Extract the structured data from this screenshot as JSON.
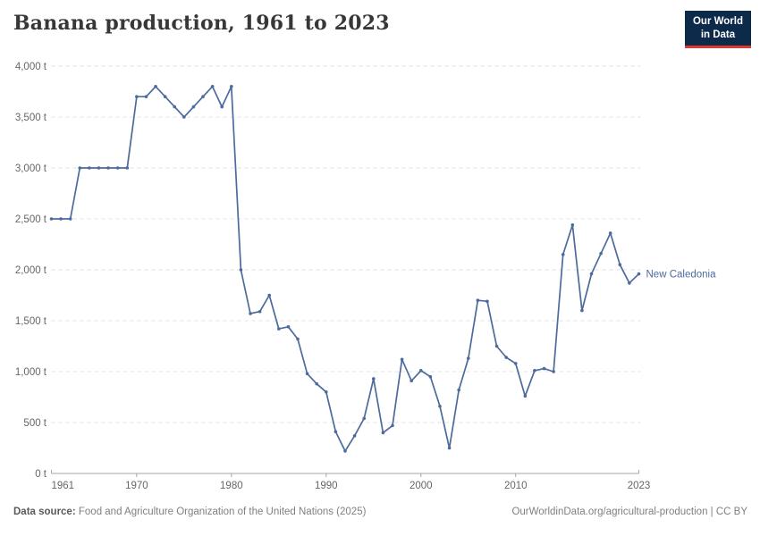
{
  "header": {
    "title": "Banana production, 1961 to 2023",
    "logo": {
      "line1": "Our World",
      "line2": "in Data"
    }
  },
  "chart_data": {
    "type": "line",
    "title": "Banana production, 1961 to 2023",
    "xlabel": "",
    "ylabel": "",
    "xlim": [
      1961,
      2023
    ],
    "ylim": [
      0,
      4000
    ],
    "grid": "horizontal-dashed",
    "legend_position": "end-of-line-label",
    "unit": "t",
    "x_tick_years": [
      1961,
      1970,
      1980,
      1990,
      2000,
      2010,
      2023
    ],
    "y_ticks": [
      {
        "value": 0,
        "label": "0 t"
      },
      {
        "value": 500,
        "label": "500 t"
      },
      {
        "value": 1000,
        "label": "1,000 t"
      },
      {
        "value": 1500,
        "label": "1,500 t"
      },
      {
        "value": 2000,
        "label": "2,000 t"
      },
      {
        "value": 2500,
        "label": "2,500 t"
      },
      {
        "value": 3000,
        "label": "3,000 t"
      },
      {
        "value": 3500,
        "label": "3,500 t"
      },
      {
        "value": 4000,
        "label": "4,000 t"
      }
    ],
    "series": [
      {
        "name": "New Caledonia",
        "color": "#4c6a9c",
        "x": [
          1961,
          1962,
          1963,
          1964,
          1965,
          1966,
          1967,
          1968,
          1969,
          1970,
          1971,
          1972,
          1973,
          1974,
          1975,
          1976,
          1977,
          1978,
          1979,
          1980,
          1981,
          1982,
          1983,
          1984,
          1985,
          1986,
          1987,
          1988,
          1989,
          1990,
          1991,
          1992,
          1993,
          1994,
          1995,
          1996,
          1997,
          1998,
          1999,
          2000,
          2001,
          2002,
          2003,
          2004,
          2005,
          2006,
          2007,
          2008,
          2009,
          2010,
          2011,
          2012,
          2013,
          2014,
          2015,
          2016,
          2017,
          2018,
          2019,
          2020,
          2021,
          2022,
          2023
        ],
        "values": [
          2500,
          2500,
          2500,
          3000,
          3000,
          3000,
          3000,
          3000,
          3000,
          3700,
          3700,
          3800,
          3700,
          3600,
          3500,
          3600,
          3700,
          3800,
          3600,
          3800,
          2000,
          1570,
          1590,
          1750,
          1420,
          1440,
          1320,
          980,
          880,
          800,
          410,
          220,
          370,
          540,
          930,
          400,
          470,
          1120,
          910,
          1010,
          950,
          660,
          250,
          820,
          1130,
          1700,
          1690,
          1250,
          1140,
          1080,
          760,
          1010,
          1030,
          1000,
          2150,
          2440,
          1600,
          1960,
          2160,
          2360,
          2050,
          1870,
          1960
        ]
      }
    ],
    "colors": {
      "line": "#4c6a9c",
      "grid": "#e0e0e0",
      "axis": "#a5a5a5",
      "tick_text": "#666666"
    }
  },
  "footer": {
    "source_label": "Data source:",
    "source_text": "Food and Agriculture Organization of the United Nations (2025)",
    "credit": "OurWorldinData.org/agricultural-production | CC BY"
  }
}
